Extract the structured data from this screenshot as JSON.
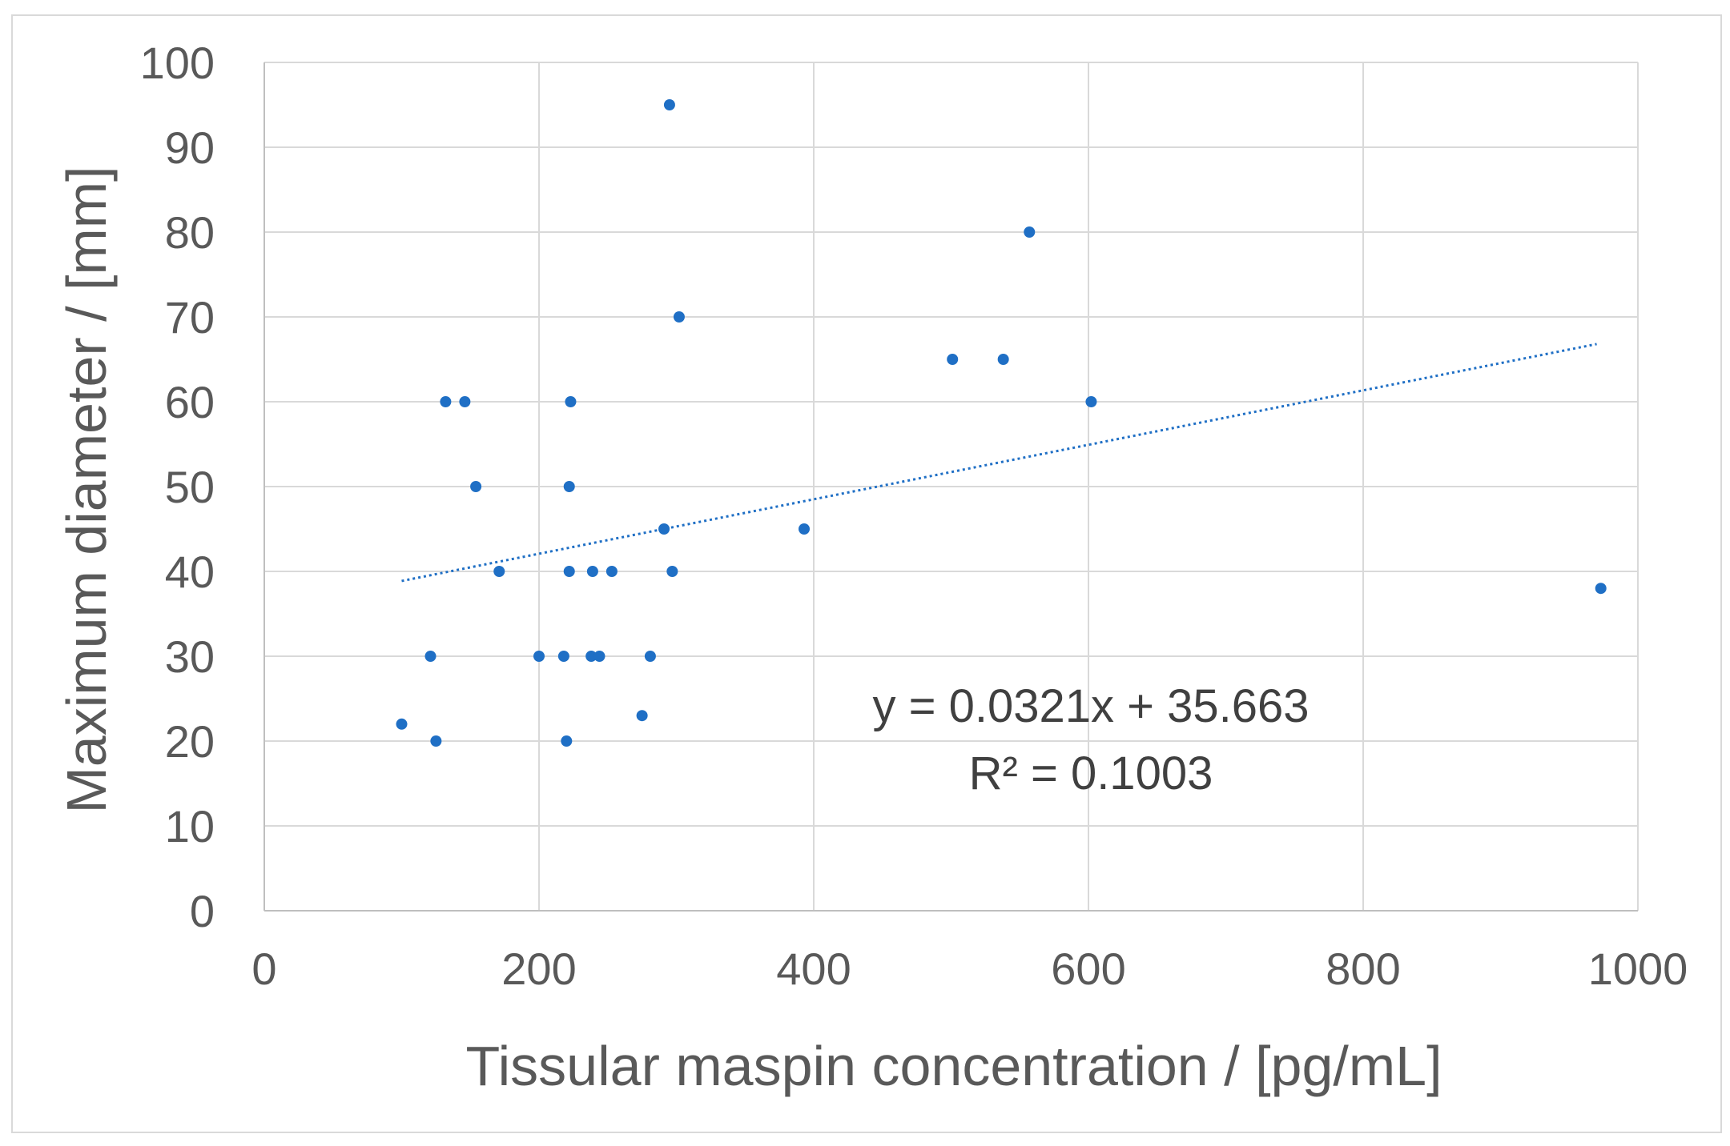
{
  "chart_data": {
    "type": "scatter",
    "xlabel": "Tissular maspin concentration / [pg/mL]",
    "ylabel": "Maximum diameter / [mm]",
    "xlim": [
      0,
      1000
    ],
    "ylim": [
      0,
      100
    ],
    "xticks": [
      0,
      200,
      400,
      600,
      800,
      1000
    ],
    "yticks": [
      0,
      10,
      20,
      30,
      40,
      50,
      60,
      70,
      80,
      90,
      100
    ],
    "grid": true,
    "legend": "none",
    "color": "#1f6fc5",
    "points": [
      {
        "x": 100,
        "y": 22
      },
      {
        "x": 121,
        "y": 30
      },
      {
        "x": 125,
        "y": 20
      },
      {
        "x": 132,
        "y": 60
      },
      {
        "x": 146,
        "y": 60
      },
      {
        "x": 154,
        "y": 50
      },
      {
        "x": 171,
        "y": 40
      },
      {
        "x": 200,
        "y": 30
      },
      {
        "x": 218,
        "y": 30
      },
      {
        "x": 220,
        "y": 20
      },
      {
        "x": 222,
        "y": 40
      },
      {
        "x": 222,
        "y": 50
      },
      {
        "x": 223,
        "y": 60
      },
      {
        "x": 238,
        "y": 30
      },
      {
        "x": 239,
        "y": 40
      },
      {
        "x": 244,
        "y": 30
      },
      {
        "x": 253,
        "y": 40
      },
      {
        "x": 275,
        "y": 23
      },
      {
        "x": 281,
        "y": 30
      },
      {
        "x": 291,
        "y": 45
      },
      {
        "x": 295,
        "y": 95
      },
      {
        "x": 297,
        "y": 40
      },
      {
        "x": 302,
        "y": 70
      },
      {
        "x": 393,
        "y": 45
      },
      {
        "x": 501,
        "y": 65
      },
      {
        "x": 538,
        "y": 65
      },
      {
        "x": 557,
        "y": 80
      },
      {
        "x": 602,
        "y": 60
      },
      {
        "x": 973,
        "y": 38
      }
    ],
    "trendline": {
      "type": "linear",
      "slope": 0.0321,
      "intercept": 35.663,
      "x_range": [
        100,
        970
      ],
      "equation": "y = 0.0321x + 35.663",
      "r_squared": "R² = 0.1003"
    }
  }
}
